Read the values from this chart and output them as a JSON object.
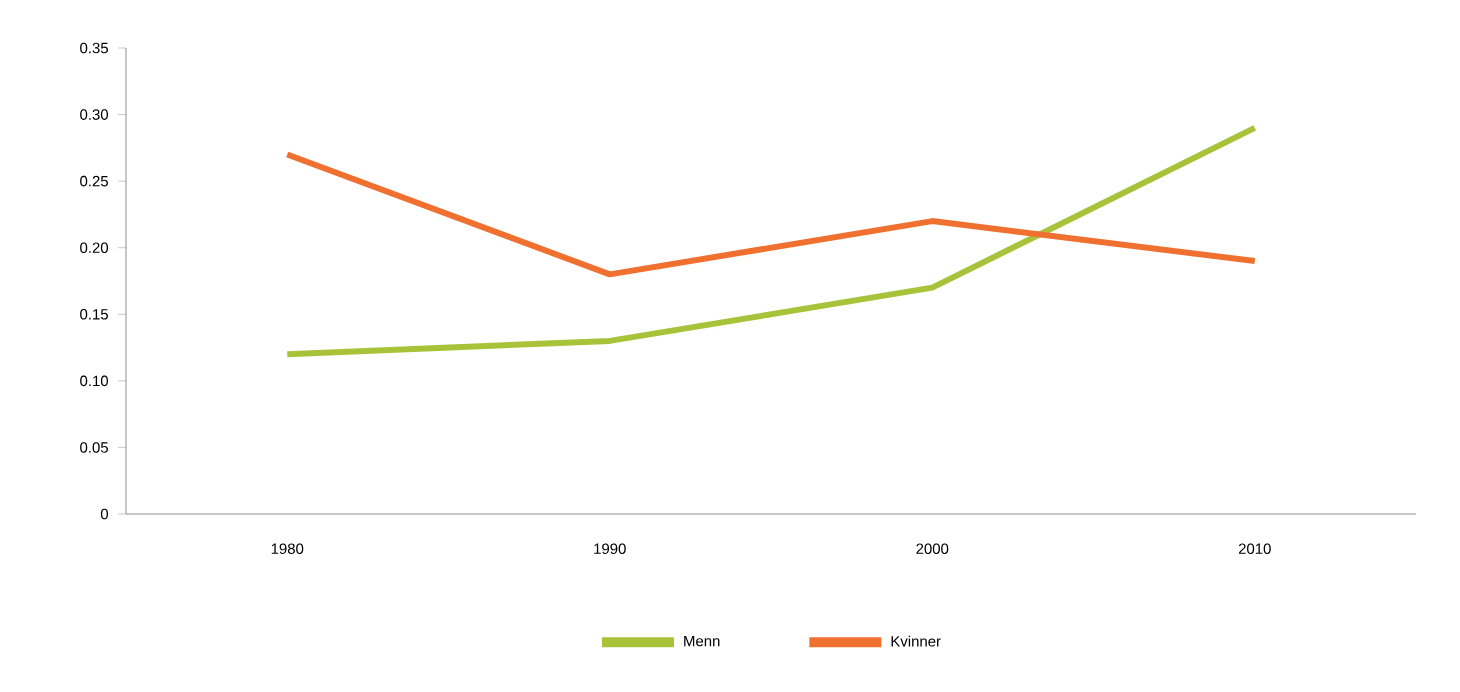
{
  "chart_data": {
    "type": "line",
    "categories": [
      "1980",
      "1990",
      "2000",
      "2010"
    ],
    "series": [
      {
        "name": "Menn",
        "color": "#a8c23a",
        "values": [
          0.12,
          0.13,
          0.17,
          0.29
        ]
      },
      {
        "name": "Kvinner",
        "color": "#f07030",
        "values": [
          0.27,
          0.18,
          0.22,
          0.19
        ]
      }
    ],
    "ylim": [
      0,
      0.35
    ],
    "yticks": [
      0,
      {
        "value": 0.05,
        "label": "0.05"
      },
      {
        "value": 0.1,
        "label": "0.10"
      },
      {
        "value": 0.15,
        "label": "0.15"
      },
      {
        "value": 0.2,
        "label": "0.20"
      },
      {
        "value": 0.25,
        "label": "0.25"
      },
      {
        "value": 0.3,
        "label": "0.30"
      },
      {
        "value": 0.35,
        "label": "0.35"
      }
    ],
    "legend": "bottom",
    "grid": false
  }
}
